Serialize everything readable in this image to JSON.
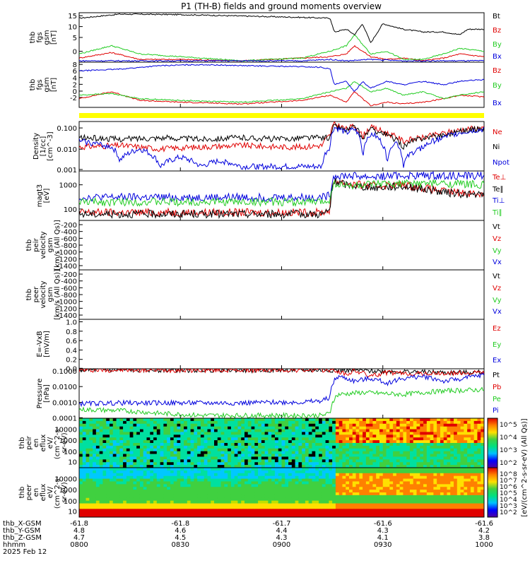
{
  "title": "P1 (TH-B) fields and ground moments overview",
  "colors": {
    "black": "#000000",
    "red": "#e00000",
    "green": "#22cc22",
    "blue": "#0000dd",
    "yellow": "#ffff00"
  },
  "chart_data": [
    {
      "type": "line",
      "id": "fgs_gse",
      "ylabel": [
        "thb",
        "fgs",
        "gsm",
        "[nT]"
      ],
      "yticks": [
        "15",
        "10",
        "5",
        "0"
      ],
      "ylim": [
        -2,
        16
      ],
      "legend": [
        "Bt",
        "Bz",
        "By",
        "Bx"
      ],
      "series": [
        {
          "name": "Bt",
          "color": "black",
          "x": [
            0,
            10,
            25,
            40,
            55,
            62,
            63,
            66,
            68,
            70,
            72,
            75,
            80,
            85,
            90,
            94,
            96,
            100
          ],
          "y": [
            14,
            15.5,
            15.3,
            14.8,
            14.3,
            14,
            9,
            10,
            8,
            12,
            5,
            12,
            10,
            9,
            9,
            8,
            10,
            10
          ]
        },
        {
          "name": "Bz",
          "color": "red",
          "x": [
            0,
            8,
            15,
            25,
            40,
            55,
            62,
            66,
            68,
            72,
            76,
            80,
            85,
            90,
            94,
            100
          ],
          "y": [
            -0.5,
            1.5,
            -1,
            -1,
            -1.5,
            -0.5,
            0,
            1,
            4,
            0,
            -1,
            -0.5,
            -1.5,
            -0.5,
            1,
            0
          ]
        },
        {
          "name": "By",
          "color": "green",
          "x": [
            0,
            8,
            15,
            25,
            40,
            55,
            62,
            66,
            68,
            72,
            76,
            80,
            85,
            90,
            94,
            100
          ],
          "y": [
            1,
            4,
            1,
            0,
            -1.5,
            -0.5,
            2,
            4,
            8,
            1,
            2,
            -1,
            -1,
            1,
            3,
            2
          ]
        },
        {
          "name": "Bx",
          "color": "blue",
          "x": [
            0,
            20,
            40,
            55,
            62,
            66,
            72,
            80,
            90,
            100
          ],
          "y": [
            -1.5,
            -1.5,
            -1.5,
            -1.5,
            -1,
            -1.5,
            -1,
            -1.5,
            -1.5,
            -1.5
          ]
        }
      ]
    },
    {
      "type": "line",
      "id": "fgs_gsm",
      "ylabel": [
        "thb",
        "fgs",
        "gsm",
        "[nT]"
      ],
      "yticks": [
        "8",
        "6",
        "4",
        "2",
        "0",
        "-2"
      ],
      "ylim": [
        -3.5,
        9.5
      ],
      "legend": [
        "Bz",
        "By",
        "Bx"
      ],
      "series": [
        {
          "name": "Bz",
          "color": "red",
          "x": [
            0,
            8,
            15,
            25,
            40,
            55,
            62,
            66,
            68,
            70,
            72,
            76,
            80,
            85,
            90,
            94,
            100
          ],
          "y": [
            -1,
            1,
            -1.5,
            -2,
            -2.5,
            -1.5,
            0,
            -2,
            1,
            -1,
            -3,
            -2,
            -2.5,
            -2,
            -1,
            0,
            -0.5
          ]
        },
        {
          "name": "By",
          "color": "green",
          "x": [
            0,
            8,
            15,
            25,
            40,
            55,
            62,
            66,
            68,
            72,
            76,
            80,
            85,
            90,
            94,
            100
          ],
          "y": [
            0,
            0.5,
            -1,
            -1.5,
            -2,
            -1,
            1,
            2,
            4,
            1,
            2,
            0,
            1,
            -1,
            0,
            1
          ]
        },
        {
          "name": "Bx",
          "color": "blue",
          "x": [
            0,
            10,
            20,
            30,
            40,
            50,
            55,
            60,
            62,
            63,
            66,
            68,
            70,
            72,
            76,
            80,
            85,
            90,
            94,
            100
          ],
          "y": [
            7,
            7.5,
            8.5,
            8.8,
            8.5,
            8.3,
            8.2,
            8,
            7.5,
            3,
            4,
            1,
            4,
            2,
            4,
            3,
            4,
            3,
            4,
            4.5
          ]
        }
      ]
    },
    {
      "type": "line",
      "id": "density",
      "ylabel": [
        "Density",
        "[1/cc]",
        "[cm^-3]"
      ],
      "yticks": [
        "0.100",
        "0.010",
        "0.001"
      ],
      "log": true,
      "ylim": [
        0.0006,
        0.2
      ],
      "legend": [
        "Ne",
        "Ni",
        "Npot"
      ],
      "series": [
        {
          "name": "Ne",
          "color": "red",
          "x": [
            0,
            10,
            20,
            30,
            40,
            50,
            55,
            60,
            62,
            63,
            66,
            68,
            70,
            72,
            76,
            80,
            85,
            90,
            95,
            100
          ],
          "y": [
            0.01,
            0.012,
            0.008,
            0.01,
            0.012,
            0.01,
            0.01,
            0.012,
            0.04,
            0.15,
            0.08,
            0.12,
            0.03,
            0.1,
            0.05,
            0.02,
            0.03,
            0.05,
            0.08,
            0.1
          ]
        },
        {
          "name": "Ni",
          "color": "black",
          "x": [
            0,
            10,
            20,
            30,
            40,
            50,
            55,
            60,
            62,
            63,
            66,
            68,
            70,
            72,
            76,
            80,
            85,
            90,
            95,
            100
          ],
          "y": [
            0.03,
            0.025,
            0.03,
            0.025,
            0.03,
            0.025,
            0.03,
            0.03,
            0.03,
            0.12,
            0.07,
            0.1,
            0.02,
            0.08,
            0.04,
            0.01,
            0.03,
            0.04,
            0.07,
            0.09
          ]
        },
        {
          "name": "Npot",
          "color": "blue",
          "x": [
            0,
            8,
            10,
            15,
            20,
            25,
            30,
            35,
            40,
            45,
            50,
            55,
            60,
            62,
            63,
            66,
            68,
            70,
            72,
            76,
            78,
            80,
            85,
            90,
            95,
            100
          ],
          "y": [
            0.02,
            0.01,
            0.002,
            0.008,
            0.001,
            0.003,
            0.001,
            0.002,
            0.001,
            0.001,
            0.001,
            0.001,
            0.001,
            0.01,
            0.1,
            0.05,
            0.08,
            0.001,
            0.05,
            0.001,
            0.02,
            0.001,
            0.01,
            0.03,
            0.06,
            0.08
          ]
        }
      ]
    },
    {
      "type": "line",
      "id": "temperature",
      "ylabel": [
        "magt3",
        "[eV]"
      ],
      "yticks": [
        "1000",
        "100"
      ],
      "log": true,
      "ylim": [
        40,
        3000
      ],
      "legend": [
        "Te⊥",
        "Te∥",
        "Ti⊥",
        "Ti∥"
      ],
      "series": [
        {
          "name": "Te⊥",
          "color": "red",
          "x": [
            0,
            20,
            40,
            60,
            62,
            63,
            66,
            72,
            80,
            90,
            100
          ],
          "y": [
            80,
            80,
            80,
            80,
            100,
            1300,
            1000,
            800,
            900,
            500,
            400
          ]
        },
        {
          "name": "Te∥",
          "color": "black",
          "x": [
            0,
            20,
            40,
            60,
            62,
            63,
            66,
            72,
            80,
            90,
            100
          ],
          "y": [
            70,
            70,
            70,
            70,
            90,
            1200,
            900,
            700,
            800,
            450,
            350
          ]
        },
        {
          "name": "Ti⊥",
          "color": "blue",
          "x": [
            0,
            20,
            40,
            60,
            62,
            63,
            66,
            72,
            80,
            90,
            100
          ],
          "y": [
            300,
            300,
            300,
            300,
            350,
            2000,
            2000,
            1800,
            2000,
            2000,
            2000
          ]
        },
        {
          "name": "Ti∥",
          "color": "green",
          "x": [
            0,
            20,
            40,
            60,
            62,
            63,
            66,
            72,
            80,
            90,
            100
          ],
          "y": [
            200,
            200,
            200,
            200,
            250,
            1000,
            800,
            900,
            1000,
            1000,
            900
          ]
        }
      ]
    },
    {
      "type": "line",
      "id": "peir_velocity",
      "ylabel": [
        "thb",
        "peir",
        "velocity",
        "gsm",
        "[km/s (All Qs)]"
      ],
      "yticks": [
        "-200",
        "-400",
        "-600",
        "-800",
        "-1000",
        "-1200",
        "-1400"
      ],
      "legend": [
        "Vt",
        "Vz",
        "Vy",
        "Vx"
      ],
      "series": []
    },
    {
      "type": "line",
      "id": "peer_velocity",
      "ylabel": [
        "thb",
        "peer",
        "velocity",
        "gsm",
        "[km/s (All Qs)]"
      ],
      "yticks": [
        "-200",
        "-400",
        "-600",
        "-800",
        "-1000",
        "-1200",
        "-1400"
      ],
      "legend": [
        "Vt",
        "Vz",
        "Vy",
        "Vx"
      ],
      "series": []
    },
    {
      "type": "line",
      "id": "efield",
      "ylabel": [
        "E=-VxB",
        "[mV/m]"
      ],
      "yticks": [
        "1.0",
        "0.8",
        "0.6",
        "0.4",
        "0.2",
        "0.0"
      ],
      "legend": [
        "Ez",
        "Ey",
        "Ex"
      ],
      "series": []
    },
    {
      "type": "line",
      "id": "pressure",
      "ylabel": [
        "Pressure",
        "[nPa]"
      ],
      "yticks": [
        "0.1000",
        "0.0100",
        "0.0010",
        "0.0001"
      ],
      "log": true,
      "ylim": [
        0.0001,
        0.12
      ],
      "legend": [
        "Pt",
        "Pb",
        "Pe",
        "Pi"
      ],
      "series": [
        {
          "name": "Pt",
          "color": "black",
          "x": [
            0,
            20,
            40,
            60,
            62,
            64,
            70,
            80,
            90,
            100
          ],
          "y": [
            0.1,
            0.1,
            0.1,
            0.1,
            0.1,
            0.1,
            0.09,
            0.08,
            0.07,
            0.07
          ]
        },
        {
          "name": "Pb",
          "color": "red",
          "x": [
            0,
            20,
            40,
            60,
            62,
            64,
            66,
            68,
            72,
            76,
            80,
            90,
            100
          ],
          "y": [
            0.1,
            0.1,
            0.1,
            0.1,
            0.1,
            0.08,
            0.05,
            0.09,
            0.04,
            0.07,
            0.06,
            0.06,
            0.07
          ]
        },
        {
          "name": "Pe",
          "color": "green",
          "x": [
            0,
            10,
            20,
            30,
            40,
            50,
            55,
            60,
            62,
            64,
            70,
            80,
            90,
            100
          ],
          "y": [
            0.00035,
            0.0003,
            0.0002,
            0.00015,
            0.00015,
            0.00015,
            0.00015,
            0.00015,
            0.0002,
            0.003,
            0.004,
            0.003,
            0.005,
            0.006
          ]
        },
        {
          "name": "Pi",
          "color": "blue",
          "x": [
            0,
            10,
            20,
            30,
            40,
            50,
            55,
            60,
            62,
            64,
            68,
            72,
            76,
            80,
            85,
            90,
            95,
            100
          ],
          "y": [
            0.0008,
            0.0009,
            0.0009,
            0.0009,
            0.0009,
            0.001,
            0.001,
            0.0012,
            0.002,
            0.04,
            0.02,
            0.03,
            0.015,
            0.03,
            0.04,
            0.02,
            0.03,
            0.05
          ]
        }
      ]
    },
    {
      "type": "heatmap",
      "id": "peir_spectrum",
      "ylabel": [
        "thb",
        "peir",
        "en",
        "eflux",
        "eV/",
        "(cm^2-s-",
        "sr-eV)"
      ],
      "yticks": [
        "10000",
        "1000",
        "100",
        "10"
      ],
      "colorbar_ticks": [
        "10^5",
        "10^4",
        "10^3",
        "10^2"
      ],
      "colorbar_label": "[eV/(cm^2-s-sr-eV) (All Qs)]"
    },
    {
      "type": "heatmap",
      "id": "peer_spectrum",
      "ylabel": [
        "thb",
        "peer",
        "en",
        "eflux",
        "eV/",
        "(cm^2-s-",
        "sr-eV)"
      ],
      "yticks": [
        "10000",
        "1000",
        "100",
        "10"
      ],
      "colorbar_ticks": [
        "10^8",
        "10^7",
        "10^6",
        "10^5",
        "10^4",
        "10^3",
        "10^2"
      ],
      "colorbar_label": "[eV/(cm^2-s-sr-eV) (All Qs)]"
    }
  ],
  "x_axis": {
    "row_labels": [
      "thb_X-GSM",
      "thb_Y-GSM",
      "thb_Z-GSM",
      "hhmm",
      "2025 Feb 12"
    ],
    "ticks": [
      {
        "x": "-61.8",
        "y": "4.8",
        "z": "4.7",
        "t": "0800"
      },
      {
        "x": "-61.8",
        "y": "4.6",
        "z": "4.5",
        "t": "0830"
      },
      {
        "x": "-61.7",
        "y": "4.4",
        "z": "4.3",
        "t": "0900"
      },
      {
        "x": "-61.6",
        "y": "4.3",
        "z": "4.1",
        "t": "0930"
      },
      {
        "x": "-61.6",
        "y": "4.2",
        "z": "3.8",
        "t": "1000"
      }
    ]
  },
  "global_colorbar_label": "[eV/(cm^2-s-sr-eV) (All Qs)]"
}
